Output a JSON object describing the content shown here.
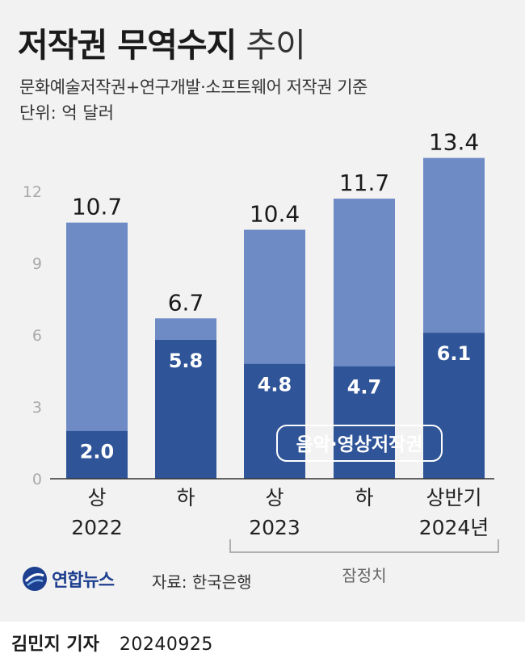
{
  "header": {
    "title_bold": "저작권 무역수지",
    "title_light": "추이",
    "subtitle": "문화예술저작권+연구개발·소프트웨어 저작권 기준",
    "unit": "단위: 억 달러"
  },
  "chart_data": {
    "type": "bar",
    "stacked": true,
    "categories": [
      "상 2022",
      "하 2022",
      "상 2023",
      "하 2023",
      "상반기 2024년"
    ],
    "category_lines": [
      [
        "상",
        "2022"
      ],
      [
        "하",
        ""
      ],
      [
        "상",
        "2023"
      ],
      [
        "하",
        ""
      ],
      [
        "상반기",
        "2024년"
      ]
    ],
    "totals": [
      10.7,
      6.7,
      10.4,
      11.7,
      13.4
    ],
    "series": [
      {
        "name": "음악·영상저작권",
        "values": [
          2.0,
          5.8,
          4.8,
          4.7,
          6.1
        ],
        "color": "#2f5498"
      },
      {
        "name": "",
        "values": [
          8.7,
          0.9,
          5.6,
          7.0,
          7.3
        ],
        "color": "#6f8bc6"
      }
    ],
    "yticks": [
      0,
      3,
      6,
      9,
      12
    ],
    "ylim": [
      0,
      14.5
    ],
    "legend_label": "음악·영상저작권",
    "bracket_label": "잠정치",
    "grid": false
  },
  "footer": {
    "logo_text": "연합뉴스",
    "source": "자료: 한국은행",
    "reporter": "김민지 기자",
    "date": "20240925"
  },
  "colors": {
    "background": "#f2f2f2",
    "dark_bar": "#2f5498",
    "light_bar": "#6f8bc6",
    "axis_text": "#a9a9a9"
  }
}
